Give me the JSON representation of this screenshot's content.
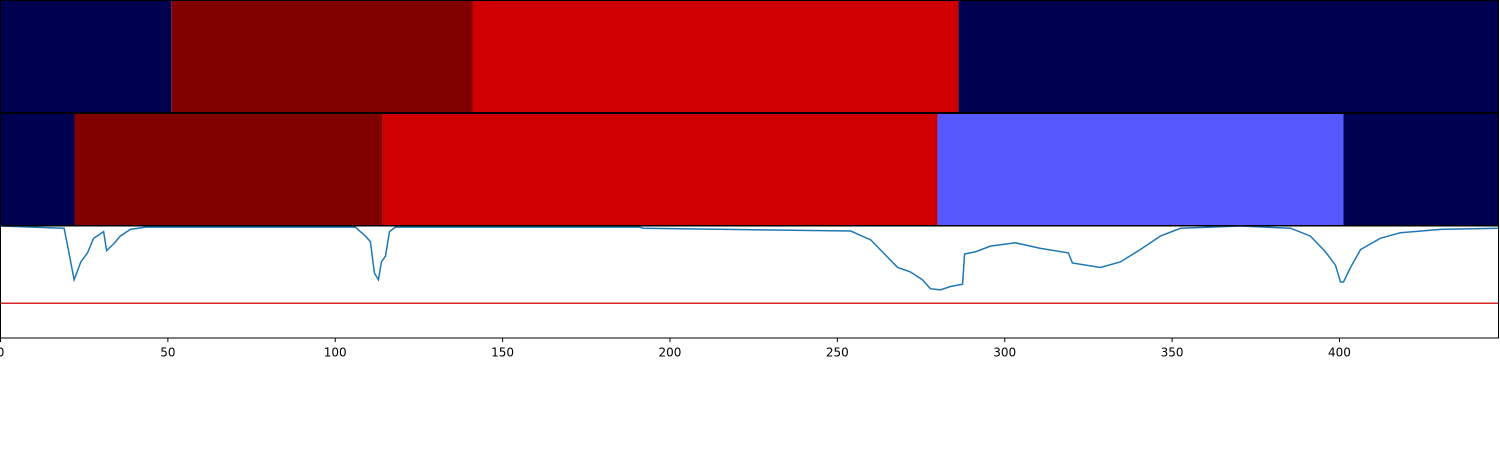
{
  "chart_data": {
    "type": "segmentation",
    "xlim": [
      0,
      447.5
    ],
    "xticks": [
      0,
      50,
      100,
      150,
      200,
      250,
      300,
      350,
      400
    ],
    "rows": [
      {
        "segments": [
          {
            "start": 0,
            "end": 51,
            "color": "#000050"
          },
          {
            "start": 51,
            "end": 141,
            "color": "#800000"
          },
          {
            "start": 141,
            "end": 286.2,
            "color": "#d00000"
          },
          {
            "start": 286.2,
            "end": 447.5,
            "color": "#000050"
          }
        ]
      },
      {
        "segments": [
          {
            "start": 0,
            "end": 22.1,
            "color": "#000050"
          },
          {
            "start": 22.1,
            "end": 114.1,
            "color": "#800000"
          },
          {
            "start": 114.1,
            "end": 279.9,
            "color": "#d00000"
          },
          {
            "start": 279.9,
            "end": 401.2,
            "color": "#5858ff"
          },
          {
            "start": 401.2,
            "end": 447.5,
            "color": "#000050"
          }
        ]
      }
    ],
    "line": {
      "color": "#1f77b4",
      "ylim": [
        0,
        1
      ],
      "threshold": {
        "value": 0.31,
        "color": "#d62728"
      },
      "x": [
        0,
        19,
        20,
        22,
        24,
        26,
        27.8,
        30.8,
        31.7,
        33.8,
        35.8,
        38.8,
        43.3,
        106,
        109,
        110.5,
        111.7,
        112.9,
        113.8,
        115,
        116.2,
        118,
        191,
        192,
        254,
        260,
        264.4,
        268,
        271.8,
        275.4,
        277.8,
        280.8,
        283.8,
        287.4,
        288,
        291.3,
        295.7,
        303.2,
        310.7,
        319,
        320.2,
        328.6,
        334.6,
        340.5,
        346.5,
        352.5,
        370.4,
        385.4,
        391.3,
        395.8,
        398.8,
        400.3,
        401.2,
        403.3,
        406.3,
        412.2,
        418.2,
        430.2,
        447.5
      ],
      "values": [
        1.0,
        0.98,
        0.83,
        0.52,
        0.68,
        0.76,
        0.89,
        0.95,
        0.78,
        0.84,
        0.91,
        0.97,
        0.99,
        0.99,
        0.91,
        0.86,
        0.58,
        0.52,
        0.68,
        0.73,
        0.95,
        0.99,
        0.99,
        0.98,
        0.955,
        0.875,
        0.74,
        0.63,
        0.59,
        0.52,
        0.44,
        0.43,
        0.46,
        0.48,
        0.75,
        0.77,
        0.82,
        0.85,
        0.8,
        0.76,
        0.67,
        0.63,
        0.68,
        0.79,
        0.91,
        0.98,
        1.0,
        0.98,
        0.91,
        0.77,
        0.65,
        0.5,
        0.5,
        0.63,
        0.79,
        0.89,
        0.94,
        0.97,
        0.98
      ]
    }
  }
}
